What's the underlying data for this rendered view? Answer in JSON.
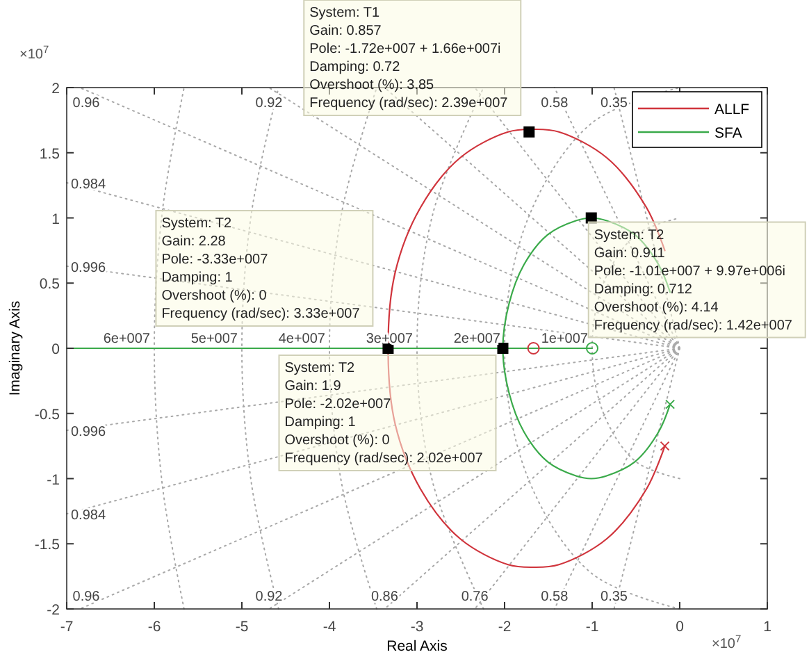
{
  "chart_data": {
    "type": "line",
    "xlabel": "Real Axis",
    "ylabel": "Imaginary Axis",
    "xlim": [
      -7,
      1
    ],
    "ylim": [
      -2,
      2
    ],
    "xticks": [
      -7,
      -6,
      -5,
      -4,
      -3,
      -2,
      -1,
      0,
      1
    ],
    "yticks": [
      -2,
      -1.5,
      -1,
      -0.5,
      0,
      0.5,
      1,
      1.5,
      2
    ],
    "legend": "top right",
    "series": [
      {
        "color": "#a8a8a8",
        "line_style": "dotted",
        "x": [
          0,
          -0.75
        ],
        "values": [
          0,
          2
        ]
      },
      {
        "color": "#a8a8a8",
        "line_style": "dotted",
        "x": [
          0,
          -0.75
        ],
        "values": [
          0,
          -2
        ]
      },
      {
        "color": "#a8a8a8",
        "line_style": "dotted",
        "x": [
          0,
          -1.43
        ],
        "values": [
          0,
          2
        ]
      },
      {
        "color": "#a8a8a8",
        "line_style": "dotted",
        "x": [
          0,
          -1.43
        ],
        "values": [
          0,
          -2
        ]
      },
      {
        "color": "#a8a8a8",
        "line_style": "dotted",
        "x": [
          0,
          -2.34
        ],
        "values": [
          0,
          2
        ]
      },
      {
        "color": "#a8a8a8",
        "line_style": "dotted",
        "x": [
          0,
          -2.34
        ],
        "values": [
          0,
          -2
        ]
      },
      {
        "color": "#a8a8a8",
        "line_style": "dotted",
        "x": [
          0,
          -3.37
        ],
        "values": [
          0,
          2
        ]
      },
      {
        "color": "#a8a8a8",
        "line_style": "dotted",
        "x": [
          0,
          -3.37
        ],
        "values": [
          0,
          -2
        ]
      },
      {
        "color": "#a8a8a8",
        "line_style": "dotted",
        "x": [
          0,
          -4.69
        ],
        "values": [
          0,
          2
        ]
      },
      {
        "color": "#a8a8a8",
        "line_style": "dotted",
        "x": [
          0,
          -4.69
        ],
        "values": [
          0,
          -2
        ]
      },
      {
        "color": "#a8a8a8",
        "line_style": "dotted",
        "x": [
          0,
          -6.85
        ],
        "values": [
          0,
          2
        ]
      },
      {
        "color": "#a8a8a8",
        "line_style": "dotted",
        "x": [
          0,
          -6.85
        ],
        "values": [
          0,
          -2
        ]
      },
      {
        "color": "#a8a8a8",
        "line_style": "dotted",
        "x": [
          0,
          -7
        ],
        "values": [
          0,
          1.27
        ]
      },
      {
        "color": "#a8a8a8",
        "line_style": "dotted",
        "x": [
          0,
          -7
        ],
        "values": [
          0,
          -1.27
        ]
      },
      {
        "color": "#a8a8a8",
        "line_style": "dotted",
        "x": [
          0,
          -7
        ],
        "values": [
          0,
          0.63
        ]
      },
      {
        "color": "#a8a8a8",
        "line_style": "dotted",
        "x": [
          0,
          -7
        ],
        "values": [
          0,
          -0.63
        ]
      },
      {
        "color": "#a8a8a8",
        "line_style": "dotted",
        "x": [
          0,
          -0.5,
          -0.87,
          -1,
          -0.87,
          -0.5,
          0
        ],
        "values": [
          -1,
          -0.87,
          -0.5,
          0,
          0.5,
          0.87,
          1
        ]
      },
      {
        "color": "#a8a8a8",
        "line_style": "dotted",
        "x": [
          0,
          -1,
          -1.73,
          -2,
          -1.73,
          -1,
          0
        ],
        "values": [
          -2,
          -1.73,
          -1,
          0,
          1,
          1.73,
          2
        ]
      },
      {
        "color": "#a8a8a8",
        "line_style": "dotted",
        "x": [
          -2.24,
          -2.82,
          -3,
          -2.82,
          -2.24
        ],
        "values": [
          -2,
          -1.03,
          0,
          1.03,
          2
        ]
      },
      {
        "color": "#a8a8a8",
        "line_style": "dotted",
        "x": [
          -3.46,
          -3.86,
          -4,
          -3.86,
          -3.46
        ],
        "values": [
          -2,
          -1.04,
          0,
          1.04,
          2
        ]
      },
      {
        "color": "#a8a8a8",
        "line_style": "dotted",
        "x": [
          -4.58,
          -4.89,
          -5,
          -4.89,
          -4.58
        ],
        "values": [
          -2,
          -1.04,
          0,
          1.04,
          2
        ]
      },
      {
        "color": "#a8a8a8",
        "line_style": "dotted",
        "x": [
          -5.66,
          -5.91,
          -6,
          -5.91,
          -5.66
        ],
        "values": [
          -2,
          -1.04,
          0,
          1.04,
          2
        ]
      },
      {
        "color": "#3aaa4a",
        "line_style": "solid",
        "x": [
          -7,
          -1
        ],
        "values": [
          0,
          0
        ]
      },
      {
        "name": "ALLF",
        "color": "#d0343c",
        "line_style": "solid",
        "x": [
          -0.17,
          -0.38,
          -0.83,
          -1.38,
          -1.67,
          -1.96,
          -2.51,
          -2.96,
          -3.25,
          -3.33,
          -3.25,
          -2.96,
          -2.51,
          -1.96,
          -1.67,
          -1.38,
          -0.83,
          -0.38,
          -0.17
        ],
        "values": [
          0.75,
          1.08,
          1.46,
          1.66,
          1.68,
          1.66,
          1.46,
          1.08,
          0.58,
          0,
          -0.58,
          -1.08,
          -1.46,
          -1.66,
          -1.68,
          -1.66,
          -1.46,
          -1.08,
          -0.75
        ]
      },
      {
        "name": "SFA",
        "color": "#3aaa4a",
        "line_style": "solid",
        "x": [
          -0.11,
          -0.24,
          -0.51,
          -0.84,
          -1.01,
          -1.18,
          -1.51,
          -1.78,
          -1.95,
          -2.02,
          -1.95,
          -1.78,
          -1.51,
          -1.18,
          -1.01,
          -0.84,
          -0.51,
          -0.24,
          -0.11
        ],
        "values": [
          0.43,
          0.64,
          0.87,
          0.98,
          1.0,
          0.98,
          0.87,
          0.64,
          0.34,
          0,
          -0.34,
          -0.64,
          -0.87,
          -0.98,
          -1.0,
          -0.98,
          -0.87,
          -0.64,
          -0.43
        ]
      },
      {
        "type": "scatter",
        "color": "#d0343c",
        "marker": "cross",
        "x": [
          -0.17
        ],
        "values": [
          -0.75
        ]
      },
      {
        "type": "scatter",
        "color": "#3aaa4a",
        "marker": "cross",
        "x": [
          -0.11
        ],
        "values": [
          -0.43
        ]
      },
      {
        "type": "scatter",
        "color": "#d0343c",
        "marker": "circle",
        "x": [
          -1.67
        ],
        "values": [
          0
        ]
      },
      {
        "type": "scatter",
        "color": "#3aaa4a",
        "marker": "circle",
        "x": [
          -1.0
        ],
        "values": [
          0
        ]
      },
      {
        "type": "scatter",
        "color": "#000000",
        "marker": "square",
        "x": [
          -1.72,
          -3.33,
          -1.01,
          -2.02
        ],
        "values": [
          1.66,
          0,
          1.0,
          0
        ]
      }
    ],
    "annotations": [
      "×10$^{7}$",
      "×10$^{7}$",
      {
        "text": "0.96",
        "x": -6.85,
        "y": 2
      },
      {
        "text": "0.92",
        "x": -4.69,
        "y": 2
      },
      {
        "text": "0.58",
        "x": -1.43,
        "y": 2
      },
      {
        "text": "0.35",
        "x": -0.75,
        "y": 2
      },
      {
        "text": "0.96",
        "x": -6.85,
        "y": -2
      },
      {
        "text": "0.92",
        "x": -4.69,
        "y": -2
      },
      {
        "text": "0.86",
        "x": -3.37,
        "y": -2
      },
      {
        "text": "0.76",
        "x": -2.34,
        "y": -2
      },
      {
        "text": "0.58",
        "x": -1.43,
        "y": -2
      },
      {
        "text": "0.35",
        "x": -0.75,
        "y": -2
      },
      {
        "text": "0.984",
        "x": -7,
        "y": 1.27
      },
      {
        "text": "0.996",
        "x": -7,
        "y": 0.63
      },
      {
        "text": "0.996",
        "x": -7,
        "y": -0.63
      },
      {
        "text": "0.984",
        "x": -7,
        "y": -1.27
      },
      {
        "text": "6e+007",
        "x": -6,
        "y": 0
      },
      {
        "text": "5e+007",
        "x": -5,
        "y": 0
      },
      {
        "text": "4e+007",
        "x": -4,
        "y": 0
      },
      {
        "text": "3e+007",
        "x": -3,
        "y": 0
      },
      {
        "text": "2e+007",
        "x": -2,
        "y": 0
      },
      {
        "text": "1e+007",
        "x": -1,
        "y": 0
      },
      {
        "text": "System: T1\nGain: 0.857\nPole: -1.72e+007 + 1.66e+007i\nDamping: 0.72\nOvershoot (%): 3.85\nFrequency (rad/sec): 2.39e+007",
        "x": -1.72,
        "y": 1.66
      },
      {
        "text": "System: T2\nGain: 2.28\nPole: -3.33e+007\nDamping: 1\nOvershoot (%): 0\nFrequency (rad/sec): 3.33e+007",
        "x": -3.33,
        "y": 0
      },
      {
        "text": "System: T2\nGain: 0.911\nPole: -1.01e+007 + 9.97e+006i\nDamping: 0.712\nOvershoot (%): 4.14\nFrequency (rad/sec): 1.42e+007",
        "x": -1.01,
        "y": 1.0
      },
      {
        "text": "System: T2\nGain: 1.9\nPole: -2.02e+007\nDamping: 1\nOvershoot (%): 0\nFrequency (rad/sec): 2.02e+007",
        "x": -2.02,
        "y": 0
      }
    ]
  }
}
